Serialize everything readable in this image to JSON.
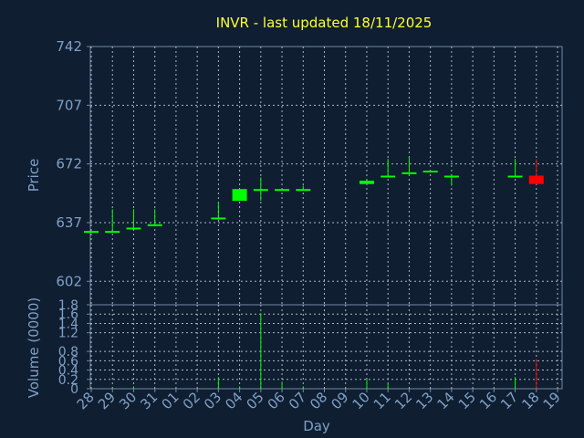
{
  "chart_data": [
    {
      "type": "candlestick",
      "title": "INVR - last updated 18/11/2025",
      "ylabel": "Price",
      "ylim": [
        588,
        742
      ],
      "yticks": [
        "742",
        "707",
        "672",
        "637",
        "602"
      ],
      "up_color": "#00ff00",
      "down_color": "#ff0000",
      "grid": true,
      "data": [
        {
          "day": "28",
          "open": 632,
          "close": 632,
          "high": 632,
          "low": 631
        },
        {
          "day": "29",
          "open": 632,
          "close": 632,
          "high": 645,
          "low": 631
        },
        {
          "day": "30",
          "open": 634,
          "close": 634,
          "high": 645,
          "low": 633
        },
        {
          "day": "31",
          "open": 636,
          "close": 636,
          "high": 645,
          "low": 635
        },
        {
          "day": "03",
          "open": 639,
          "close": 640,
          "high": 649,
          "low": 639
        },
        {
          "day": "04",
          "open": 650,
          "close": 657,
          "high": 657,
          "low": 650
        },
        {
          "day": "05",
          "open": 657,
          "close": 657,
          "high": 664,
          "low": 650
        },
        {
          "day": "06",
          "open": 657,
          "close": 657,
          "high": 657,
          "low": 657
        },
        {
          "day": "07",
          "open": 657,
          "close": 657,
          "high": 659,
          "low": 656
        },
        {
          "day": "10",
          "open": 660,
          "close": 662,
          "high": 662,
          "low": 660
        },
        {
          "day": "11",
          "open": 665,
          "close": 665,
          "high": 675,
          "low": 664
        },
        {
          "day": "12",
          "open": 667,
          "close": 667,
          "high": 676,
          "low": 667
        },
        {
          "day": "13",
          "open": 668,
          "close": 668,
          "high": 668,
          "low": 668
        },
        {
          "day": "14",
          "open": 665,
          "close": 665,
          "high": 666,
          "low": 659
        },
        {
          "day": "17",
          "open": 665,
          "close": 665,
          "high": 675,
          "low": 664
        },
        {
          "day": "18",
          "open": 665,
          "close": 660,
          "high": 675,
          "low": 660
        }
      ]
    },
    {
      "type": "bar",
      "ylabel": "Volume (0000)",
      "xlabel": "Day",
      "ylim": [
        0,
        1.8
      ],
      "yticks": [
        "1.8",
        "1.6",
        "1.4",
        "1.2",
        "0.8",
        "0.6",
        "0.4",
        "0.2",
        "0"
      ],
      "categories": [
        "28",
        "29",
        "30",
        "31",
        "01",
        "02",
        "03",
        "04",
        "05",
        "06",
        "07",
        "08",
        "09",
        "10",
        "11",
        "12",
        "13",
        "14",
        "15",
        "16",
        "17",
        "18",
        "19"
      ],
      "values": [
        0,
        0.02,
        0.05,
        0,
        0,
        0,
        0.25,
        0.05,
        1.62,
        0.15,
        0.05,
        0,
        0,
        0.2,
        0.1,
        0,
        0,
        0,
        0,
        0,
        0.25,
        0.62,
        0
      ],
      "colors": [
        "#00ff00",
        "#00ff00",
        "#00ff00",
        "#00ff00",
        "#00ff00",
        "#00ff00",
        "#00ff00",
        "#00ff00",
        "#00ff00",
        "#00ff00",
        "#00ff00",
        "#00ff00",
        "#00ff00",
        "#00ff00",
        "#00ff00",
        "#00ff00",
        "#00ff00",
        "#00ff00",
        "#00ff00",
        "#00ff00",
        "#00ff00",
        "#ff0000",
        "#00ff00"
      ]
    }
  ]
}
